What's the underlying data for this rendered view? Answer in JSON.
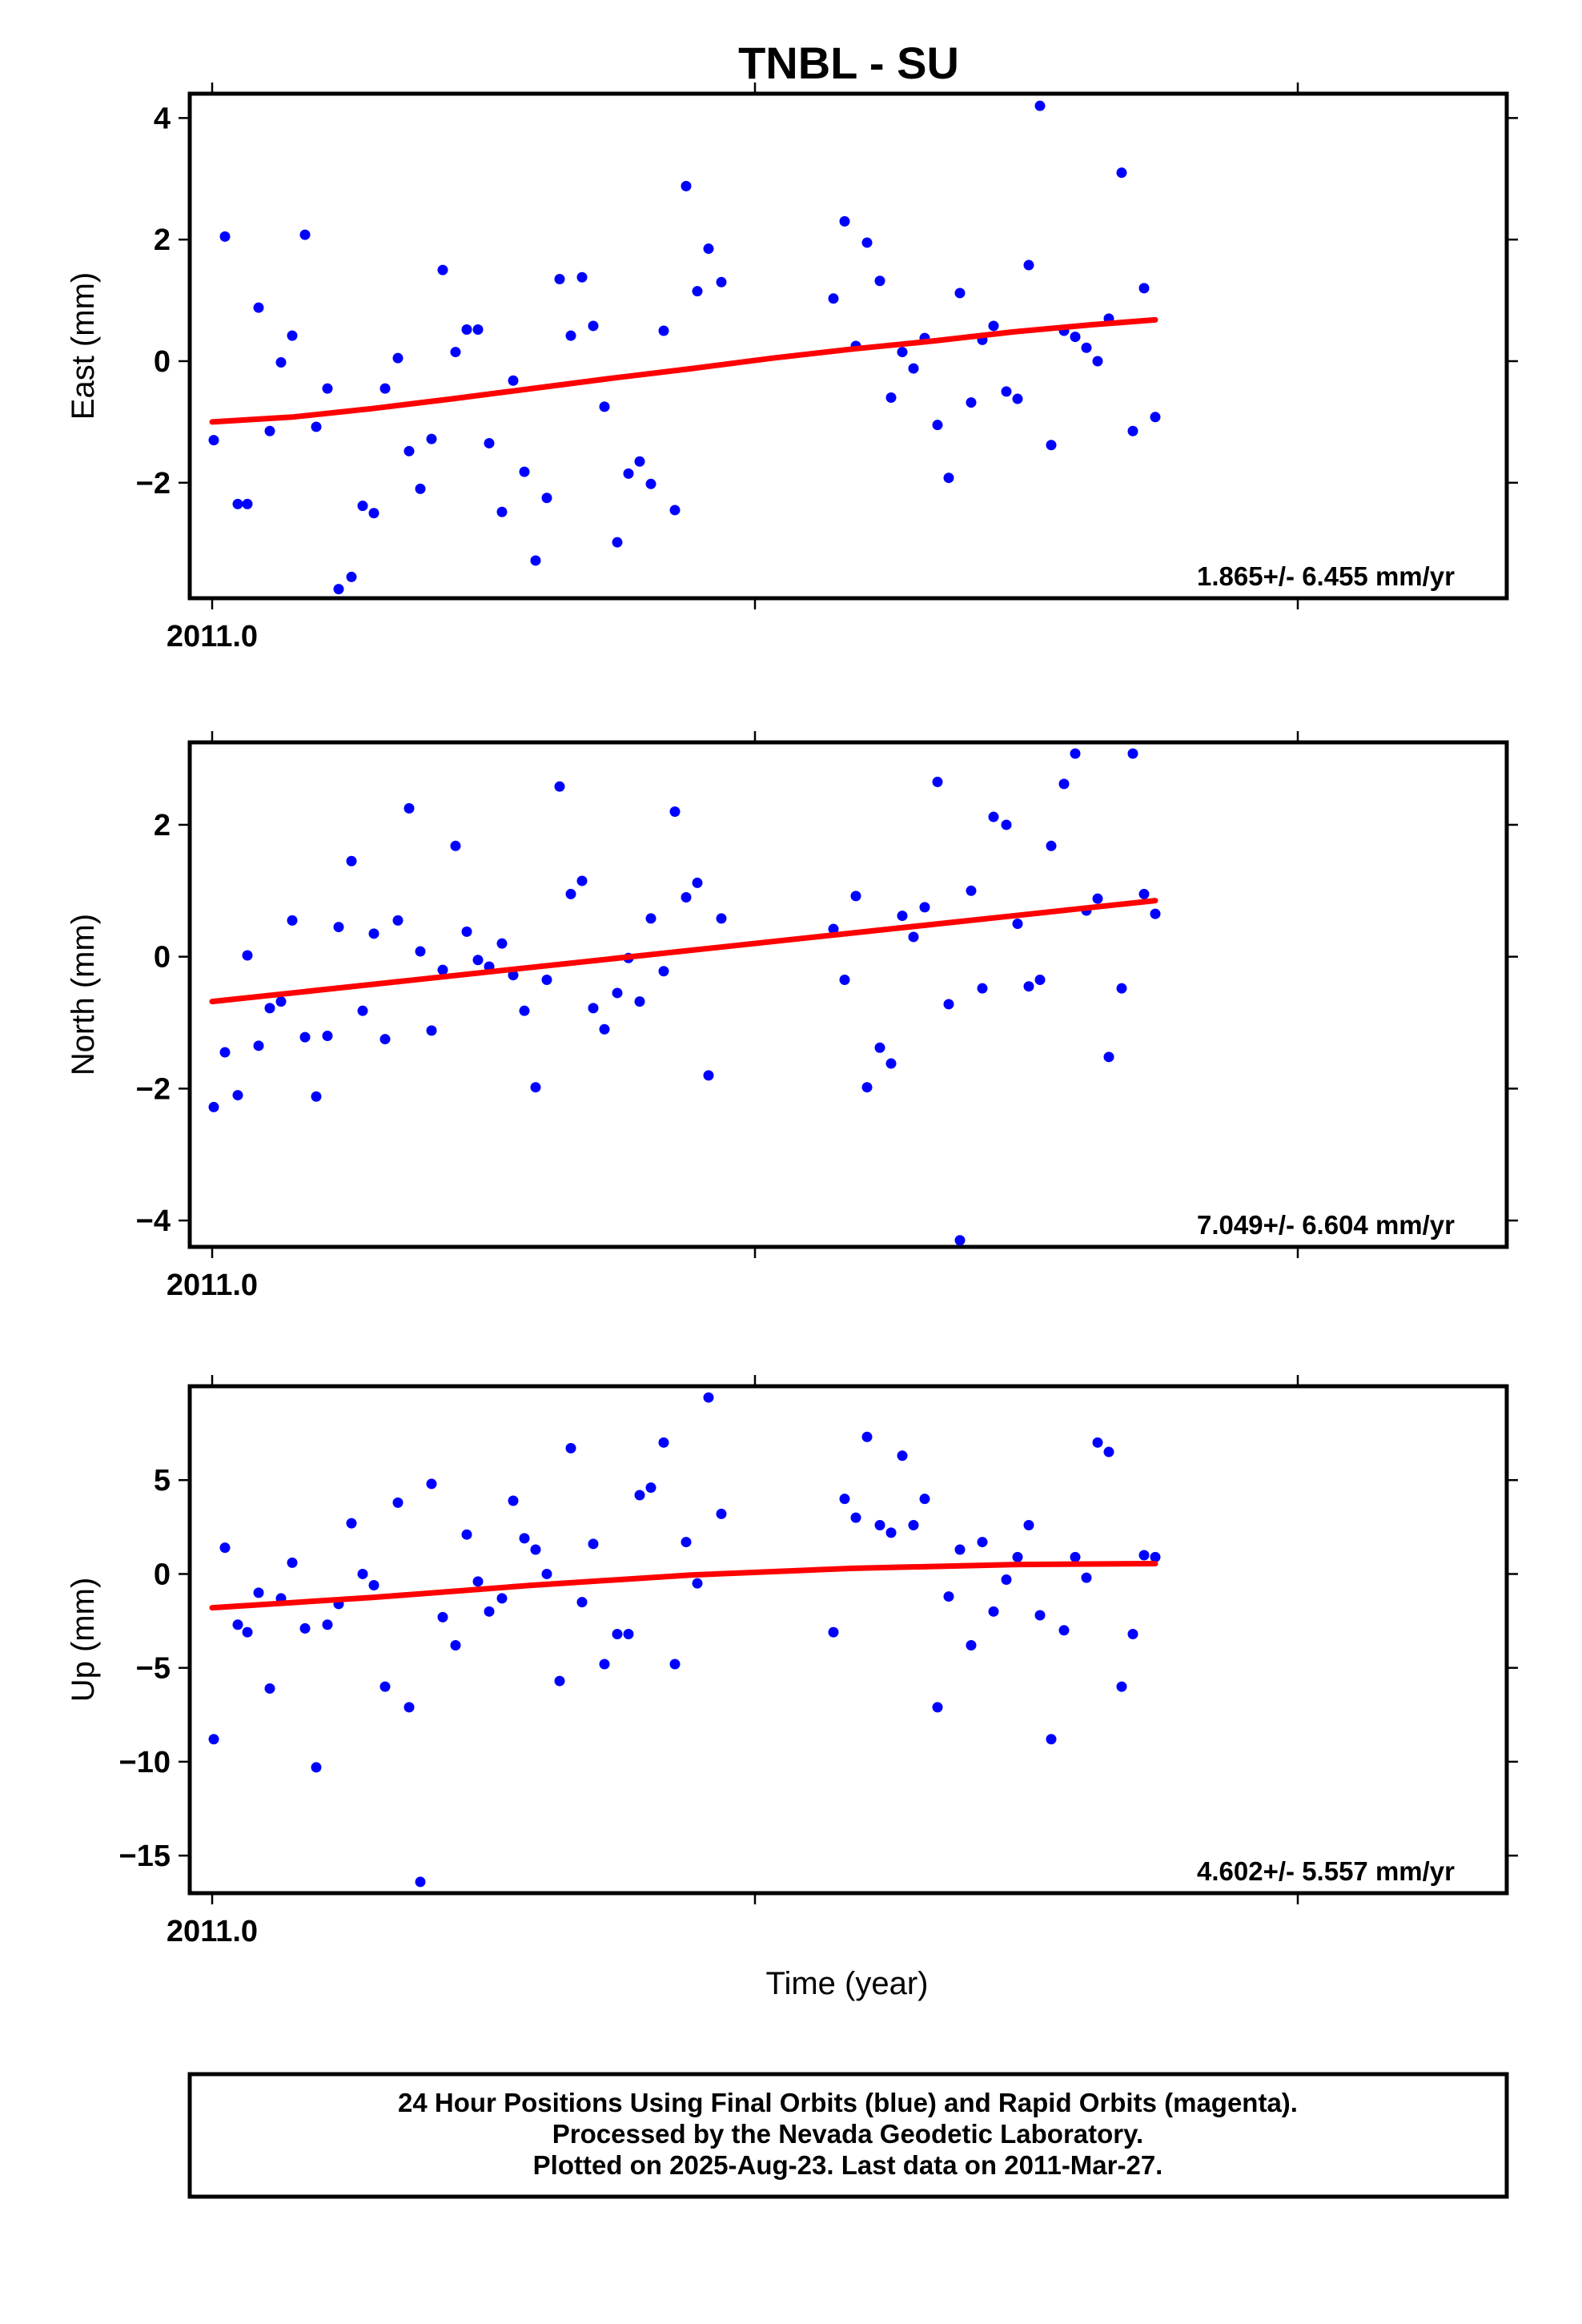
{
  "title": "TNBL - SU",
  "colors": {
    "final_orbits": "#0000ff",
    "trend": "#ff0000",
    "frame": "#000000"
  },
  "x_axis": {
    "label": "Time (year)",
    "tick_label": "2011.0"
  },
  "footer": {
    "line1": "24 Hour Positions Using Final Orbits (blue) and Rapid Orbits (magenta).",
    "line2": "Processed by the Nevada Geodetic Laboratory.",
    "line3": "Plotted on 2025-Aug-23. Last data on 2011-Mar-27."
  },
  "chart_data": [
    {
      "type": "scatter",
      "ylabel": "East (mm)",
      "rate_text": "1.865+/- 6.455 mm/yr",
      "ylim": [
        -3.9,
        4.4
      ],
      "yticks": [
        -2,
        0,
        2,
        4
      ],
      "ytick_labels": [
        "−2",
        "0",
        "2",
        "4"
      ],
      "x": [
        0.2,
        1.6,
        3.2,
        4.4,
        5.8,
        7.2,
        8.6,
        10.0,
        11.6,
        13.0,
        14.4,
        15.8,
        17.4,
        18.8,
        20.2,
        21.6,
        23.2,
        24.6,
        26.0,
        27.4,
        28.8,
        30.4,
        31.8,
        33.2,
        34.6,
        36.2,
        37.6,
        39.0,
        40.4,
        41.8,
        43.4,
        44.8,
        46.2,
        47.6,
        49.0,
        50.6,
        52.0,
        53.4,
        54.8,
        56.4,
        57.8,
        59.2,
        60.6,
        62.0,
        63.6,
        77.6,
        79.0,
        80.4,
        81.8,
        83.4,
        84.8,
        86.2,
        87.6,
        89.0,
        90.6,
        92.0,
        93.4,
        94.8,
        96.2,
        97.6,
        99.2,
        100.6,
        102.0,
        103.4,
        104.8,
        106.4,
        107.8,
        109.2,
        110.6,
        112.0,
        113.6,
        115.0,
        116.4,
        117.8
      ],
      "y": [
        -1.3,
        2.05,
        -2.35,
        -2.35,
        0.88,
        -1.15,
        -0.02,
        0.42,
        2.08,
        -1.08,
        -0.45,
        -3.75,
        -3.55,
        -2.38,
        -2.5,
        -0.45,
        0.05,
        -1.48,
        -2.1,
        -1.28,
        1.5,
        0.15,
        0.52,
        0.52,
        -1.35,
        -2.48,
        -0.32,
        -1.82,
        -3.28,
        -2.25,
        1.35,
        0.42,
        1.38,
        0.58,
        -0.75,
        -2.98,
        -1.85,
        -1.65,
        -2.02,
        0.5,
        -2.45,
        2.88,
        1.15,
        1.85,
        1.3,
        1.03,
        2.3,
        0.25,
        1.95,
        1.32,
        -0.6,
        0.15,
        -0.12,
        0.38,
        -1.05,
        -1.92,
        1.12,
        -0.68,
        0.35,
        0.58,
        -0.5,
        -0.62,
        1.58,
        4.2,
        -1.38,
        0.5,
        0.4,
        0.22,
        0.0,
        0.7,
        3.1,
        -1.15,
        1.2,
        -0.92
      ],
      "trend_x": [
        0,
        10,
        20,
        30,
        40,
        50,
        60,
        70,
        80,
        90,
        100,
        110,
        117.8
      ],
      "trend_y": [
        -1.0,
        -0.92,
        -0.78,
        -0.62,
        -0.45,
        -0.28,
        -0.12,
        0.05,
        0.2,
        0.33,
        0.48,
        0.6,
        0.68
      ]
    },
    {
      "type": "scatter",
      "ylabel": "North (mm)",
      "rate_text": "7.049+/- 6.604 mm/yr",
      "ylim": [
        -4.4,
        3.25
      ],
      "yticks": [
        -4,
        -2,
        0,
        2
      ],
      "ytick_labels": [
        "−4",
        "−2",
        "0",
        "2"
      ],
      "x": [
        0.2,
        1.6,
        3.2,
        4.4,
        5.8,
        7.2,
        8.6,
        10.0,
        11.6,
        13.0,
        14.4,
        15.8,
        17.4,
        18.8,
        20.2,
        21.6,
        23.2,
        24.6,
        26.0,
        27.4,
        28.8,
        30.4,
        31.8,
        33.2,
        34.6,
        36.2,
        37.6,
        39.0,
        40.4,
        41.8,
        43.4,
        44.8,
        46.2,
        47.6,
        49.0,
        50.6,
        52.0,
        53.4,
        54.8,
        56.4,
        57.8,
        59.2,
        60.6,
        62.0,
        63.6,
        77.6,
        79.0,
        80.4,
        81.8,
        83.4,
        84.8,
        86.2,
        87.6,
        89.0,
        90.6,
        92.0,
        93.4,
        94.8,
        96.2,
        97.6,
        99.2,
        100.6,
        102.0,
        103.4,
        104.8,
        106.4,
        107.8,
        109.2,
        110.6,
        112.0,
        113.6,
        115.0,
        116.4,
        117.8
      ],
      "y": [
        -2.28,
        -1.45,
        -2.1,
        0.02,
        -1.35,
        -0.78,
        -0.68,
        0.55,
        -1.22,
        -2.12,
        -1.2,
        0.45,
        1.45,
        -0.82,
        0.35,
        -1.25,
        0.55,
        2.25,
        0.08,
        -1.12,
        -0.2,
        1.68,
        0.38,
        -0.05,
        -0.15,
        0.2,
        -0.28,
        -0.82,
        -1.98,
        -0.35,
        2.58,
        0.95,
        1.15,
        -0.78,
        -1.1,
        -0.55,
        -0.02,
        -0.68,
        0.58,
        -0.22,
        2.2,
        0.9,
        1.12,
        -1.8,
        0.58,
        0.42,
        -0.35,
        0.92,
        -1.98,
        -1.38,
        -1.62,
        0.62,
        0.3,
        0.75,
        2.65,
        -0.72,
        -4.3,
        1.0,
        -0.48,
        2.12,
        2.0,
        0.5,
        -0.45,
        -0.35,
        1.68,
        2.62,
        3.08,
        0.7,
        0.88,
        -1.52,
        -0.48,
        3.08,
        0.95,
        0.65
      ],
      "trend_x": [
        0,
        117.8
      ],
      "trend_y": [
        -0.68,
        0.85
      ]
    },
    {
      "type": "scatter",
      "ylabel": "Up (mm)",
      "rate_text": "4.602+/- 5.557 mm/yr",
      "ylim": [
        -17,
        10
      ],
      "yticks": [
        -15,
        -10,
        -5,
        0,
        5
      ],
      "ytick_labels": [
        "−15",
        "−10",
        "−5",
        "0",
        "5"
      ],
      "x": [
        0.2,
        1.6,
        3.2,
        4.4,
        5.8,
        7.2,
        8.6,
        10.0,
        11.6,
        13.0,
        14.4,
        15.8,
        17.4,
        18.8,
        20.2,
        21.6,
        23.2,
        24.6,
        26.0,
        27.4,
        28.8,
        30.4,
        31.8,
        33.2,
        34.6,
        36.2,
        37.6,
        39.0,
        40.4,
        41.8,
        43.4,
        44.8,
        46.2,
        47.6,
        49.0,
        50.6,
        52.0,
        53.4,
        54.8,
        56.4,
        57.8,
        59.2,
        60.6,
        62.0,
        63.6,
        77.6,
        79.0,
        80.4,
        81.8,
        83.4,
        84.8,
        86.2,
        87.6,
        89.0,
        90.6,
        92.0,
        93.4,
        94.8,
        96.2,
        97.6,
        99.2,
        100.6,
        102.0,
        103.4,
        104.8,
        106.4,
        107.8,
        109.2,
        110.6,
        112.0,
        113.6,
        115.0,
        116.4,
        117.8
      ],
      "y": [
        -8.8,
        1.4,
        -2.7,
        -3.1,
        -1.0,
        -6.1,
        -1.3,
        0.6,
        -2.9,
        -10.3,
        -2.7,
        -1.6,
        2.7,
        0.0,
        -0.6,
        -6.0,
        3.8,
        -7.1,
        -16.4,
        4.8,
        -2.3,
        -3.8,
        2.1,
        -0.4,
        -2.0,
        -1.3,
        3.9,
        1.9,
        1.3,
        0.0,
        -5.7,
        6.7,
        -1.5,
        1.6,
        -4.8,
        -3.2,
        -3.2,
        4.2,
        4.6,
        7.0,
        -4.8,
        1.7,
        -0.5,
        9.4,
        3.2,
        -3.1,
        4.0,
        3.0,
        7.3,
        2.6,
        2.2,
        6.3,
        2.6,
        4.0,
        -7.1,
        -1.2,
        1.3,
        -3.8,
        1.7,
        -2.0,
        -0.3,
        0.9,
        2.6,
        -2.2,
        -8.8,
        -3.0,
        0.9,
        -0.2,
        7.0,
        6.5,
        -6.0,
        -3.2,
        1.0,
        0.9
      ],
      "trend_x": [
        0,
        20,
        40,
        60,
        80,
        100,
        117.8
      ],
      "trend_y": [
        -1.8,
        -1.25,
        -0.6,
        -0.05,
        0.3,
        0.5,
        0.55
      ]
    }
  ]
}
